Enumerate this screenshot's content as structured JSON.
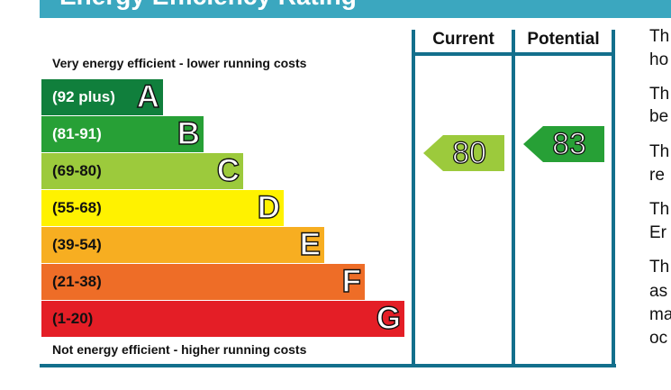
{
  "chart_data": {
    "type": "energy-efficiency-rating",
    "title": "Energy Efficiency Rating",
    "top_caption": "Very energy efficient - lower running costs",
    "bottom_caption": "Not energy efficient - higher running costs",
    "columns": [
      "Current",
      "Potential"
    ],
    "bands": [
      {
        "letter": "A",
        "range": "(92 plus)",
        "color": "#107f3c",
        "text_color": "#ffffff"
      },
      {
        "letter": "B",
        "range": "(81-91)",
        "color": "#27a036",
        "text_color": "#ffffff"
      },
      {
        "letter": "C",
        "range": "(69-80)",
        "color": "#9cca3c",
        "text_color": "#111111"
      },
      {
        "letter": "D",
        "range": "(55-68)",
        "color": "#fff200",
        "text_color": "#111111"
      },
      {
        "letter": "E",
        "range": "(39-54)",
        "color": "#f7ae21",
        "text_color": "#111111"
      },
      {
        "letter": "F",
        "range": "(21-38)",
        "color": "#ee6d27",
        "text_color": "#111111"
      },
      {
        "letter": "G",
        "range": "(1-20)",
        "color": "#e41e26",
        "text_color": "#111111"
      }
    ],
    "current": {
      "value": 80,
      "band": "C",
      "color": "#9cca3c"
    },
    "potential": {
      "value": 83,
      "band": "B",
      "color": "#27a036"
    },
    "frame_color": "#136f8c",
    "title_bar_color": "#3ba7bf"
  },
  "side_text": [
    "Th",
    "ho",
    "Th",
    "be",
    "Th",
    "re",
    "Th",
    "Er",
    "Th",
    "as",
    "ma",
    "oc"
  ]
}
